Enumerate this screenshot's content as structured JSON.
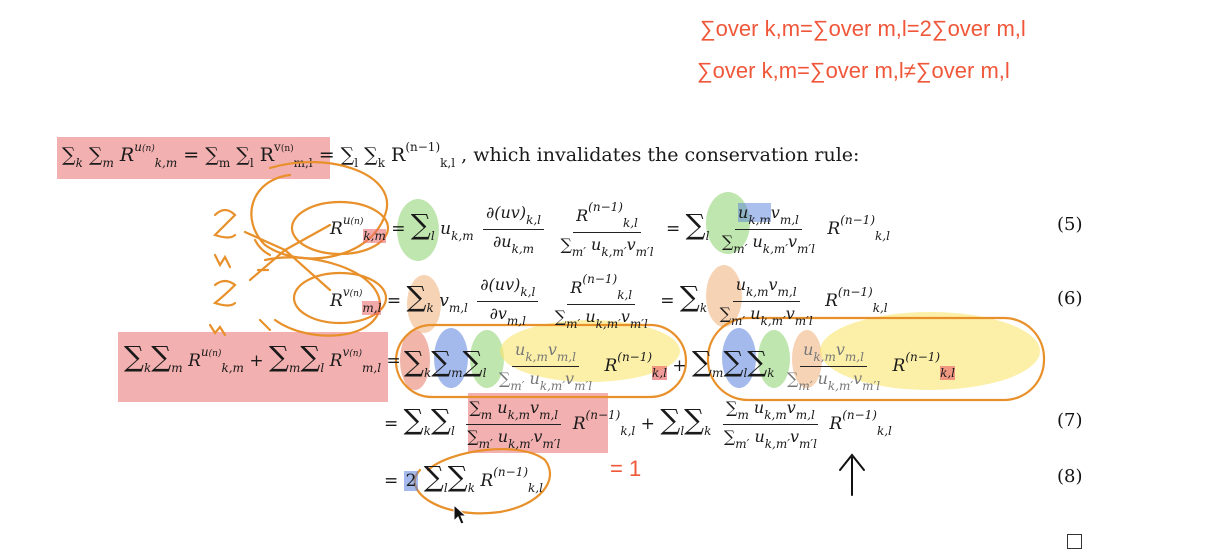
{
  "annotations": {
    "line1": "∑over k,m=∑over m,l=2∑over m,l",
    "line2": "∑over k,m=∑over m,l≠∑over m,l",
    "eq_one": "= 1",
    "two": "2"
  },
  "intro": {
    "lhs": "∑ₖ ∑ₘ R",
    "eq_mid": "= ∑ₘ ∑ₗ R",
    "eq_rhs": "= ∑ₗ ∑ₖ R",
    "tail": ", which invalidates the conservation rule:"
  },
  "equations": {
    "e5": {
      "lhs": "R",
      "num1": "∂(uv)",
      "den1": "∂u",
      "num2": "R",
      "den2": "∑ u v",
      "num3": "u v",
      "den3": "∑ u v"
    },
    "numbers": [
      "(5)",
      "(6)",
      "(7)",
      "(8)"
    ]
  },
  "qed": "□"
}
